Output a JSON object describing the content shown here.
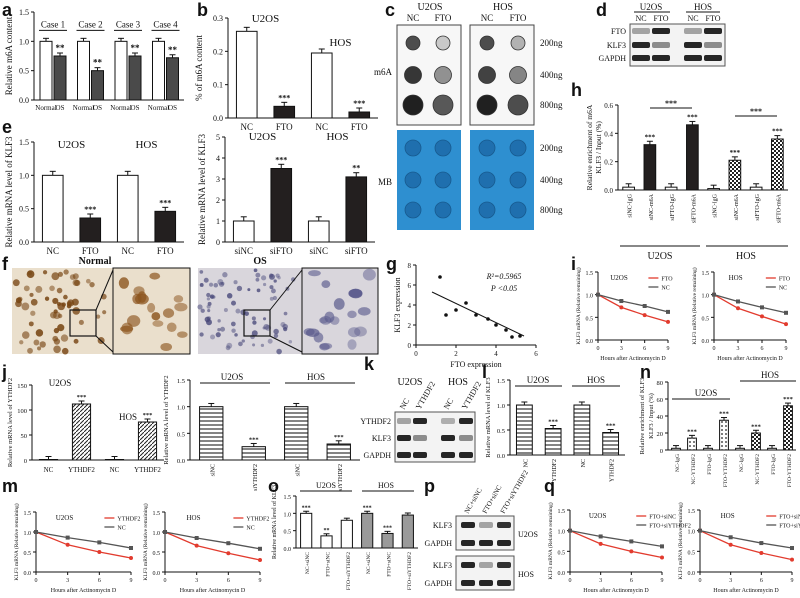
{
  "panels": {
    "a": {
      "letter": "a",
      "chart_data": {
        "type": "bar",
        "ylabel": "Relative m6A content",
        "groups": [
          "Case 1",
          "Case 2",
          "Case 3",
          "Case 4"
        ],
        "tick_labels": [
          "Normal",
          "OS"
        ],
        "values": [
          [
            1.0,
            0.75
          ],
          [
            1.0,
            0.5
          ],
          [
            1.0,
            0.75
          ],
          [
            1.0,
            0.72
          ]
        ],
        "sig": [
          "**",
          "**",
          "**",
          "**"
        ],
        "yticks": [
          "0.0",
          "0.5",
          "1.0",
          "1.5"
        ],
        "ylim": [
          0,
          1.5
        ]
      }
    },
    "b": {
      "letter": "b",
      "chart_data": {
        "type": "bar",
        "ylabel": "% of m6A content",
        "groups": [
          "U2OS",
          "HOS"
        ],
        "categories": [
          "NC",
          "FTO",
          "NC",
          "FTO"
        ],
        "values": [
          0.26,
          0.035,
          0.195,
          0.018
        ],
        "sig": [
          "",
          "***",
          "",
          "***"
        ],
        "yticks": [
          "0.0",
          "0.1",
          "0.2",
          "0.3"
        ],
        "ylim": [
          0,
          0.3
        ]
      }
    },
    "c": {
      "letter": "c",
      "groups": [
        "U2OS",
        "HOS"
      ],
      "cols": [
        "NC",
        "FTO",
        "NC",
        "FTO"
      ],
      "rows": [
        "200ng",
        "400ng",
        "800ng"
      ],
      "m6a_label": "m6A",
      "mb_label": "MB"
    },
    "d": {
      "letter": "d",
      "groups": [
        "U2OS",
        "HOS"
      ],
      "cols": [
        "NC",
        "FTO",
        "NC",
        "FTO"
      ],
      "bands": [
        "FTO",
        "KLF3",
        "GAPDH"
      ]
    },
    "e": {
      "letter": "e",
      "left": {
        "type": "bar",
        "ylabel": "Relative mRNA level of KLF3",
        "groups": [
          "U2OS",
          "HOS"
        ],
        "categories": [
          "NC",
          "FTO",
          "NC",
          "FTO"
        ],
        "values": [
          1.0,
          0.36,
          1.0,
          0.46
        ],
        "sig": [
          "",
          "***",
          "",
          "***"
        ],
        "yticks": [
          "0.0",
          "0.5",
          "1.0",
          "1.5"
        ],
        "ylim": [
          0,
          1.5
        ]
      },
      "right": {
        "type": "bar",
        "ylabel": "Relative mRNA level of KLF3",
        "groups": [
          "U2OS",
          "HOS"
        ],
        "categories": [
          "siNC",
          "siFTO",
          "siNC",
          "siFTO"
        ],
        "values": [
          1.0,
          3.5,
          1.0,
          3.1
        ],
        "sig": [
          "",
          "***",
          "",
          "**"
        ],
        "yticks": [
          "0",
          "1",
          "2",
          "3",
          "4",
          "5"
        ],
        "ylim": [
          0,
          5
        ]
      }
    },
    "f": {
      "letter": "f",
      "normal_label": "Normal",
      "os_label": "OS"
    },
    "g": {
      "letter": "g",
      "chart_data": {
        "type": "scatter",
        "xlabel": "FTO expression",
        "ylabel": "KLF3 expression",
        "r2": "R²=0.5965",
        "p": "P <0.05",
        "x": [
          1.2,
          1.5,
          2.0,
          2.5,
          3.0,
          3.6,
          4.0,
          4.5,
          4.8,
          5.2
        ],
        "y": [
          6.8,
          3.0,
          3.5,
          4.2,
          3.0,
          2.6,
          2.0,
          1.5,
          0.8,
          0.9
        ],
        "xticks": [
          "0",
          "2",
          "4",
          "6"
        ],
        "yticks": [
          "0",
          "2",
          "4",
          "6",
          "8"
        ],
        "xlim": [
          0,
          6
        ],
        "ylim": [
          0,
          8
        ]
      }
    },
    "h": {
      "letter": "h",
      "chart_data": {
        "type": "bar",
        "ylabel": "Relative enrichment of m6A",
        "ylabel2": "KLF3 / Input (%)",
        "groups": [
          "U2OS",
          "HOS"
        ],
        "categories": [
          "siNC-IgG",
          "siNC-m6A",
          "siFTO-IgG",
          "siFTO-m6A",
          "siNC-IgG",
          "siNC-m6A",
          "siFTO-IgG",
          "siFTO-m6A"
        ],
        "values": [
          0.02,
          0.32,
          0.02,
          0.46,
          0.01,
          0.21,
          0.02,
          0.36
        ],
        "sig": [
          "",
          "***",
          "",
          "***",
          "",
          "***",
          "",
          "***"
        ],
        "yticks": [
          "0.0",
          "0.2",
          "0.4",
          "0.6"
        ],
        "ylim": [
          0,
          0.6
        ]
      }
    },
    "i": {
      "letter": "i",
      "charts": [
        {
          "title": "U2OS",
          "series": [
            {
              "name": "FTO",
              "values": [
                1.0,
                0.72,
                0.55,
                0.4
              ]
            },
            {
              "name": "NC",
              "values": [
                1.0,
                0.86,
                0.75,
                0.62
              ]
            }
          ]
        },
        {
          "title": "HOS",
          "series": [
            {
              "name": "FTO",
              "values": [
                1.0,
                0.7,
                0.52,
                0.35
              ]
            },
            {
              "name": "NC",
              "values": [
                1.0,
                0.85,
                0.72,
                0.6
              ]
            }
          ]
        }
      ],
      "x": [
        "0",
        "3",
        "6",
        "9"
      ],
      "ylabel": "KLF3 mRNA (Relative remaining)",
      "xlabel": "Hours after Actinomycin D",
      "yticks": [
        "0.0",
        "0.5",
        "1.0",
        "1.5"
      ]
    },
    "j": {
      "letter": "j",
      "left": {
        "type": "bar",
        "ylabel": "Relative mRNA level of YTHDF2",
        "groups": [
          "U2OS",
          "HOS"
        ],
        "categories": [
          "NC",
          "YTHDF2",
          "NC",
          "YTHDF2"
        ],
        "values": [
          1,
          112,
          1,
          76
        ],
        "sig": [
          "",
          "***",
          "",
          "***"
        ],
        "yticks": [
          "0",
          "50",
          "100",
          "150"
        ],
        "ylim": [
          0,
          150
        ]
      },
      "right": {
        "type": "bar",
        "ylabel": "Relative mRNA level of YTHDF2",
        "groups": [
          "U2OS",
          "HOS"
        ],
        "categories": [
          "siNC",
          "siYTHDF2",
          "siNC",
          "siYTHDF2"
        ],
        "values": [
          1.0,
          0.25,
          1.0,
          0.3
        ],
        "sig": [
          "",
          "***",
          "",
          "***"
        ],
        "yticks": [
          "0.0",
          "0.5",
          "1.0",
          "1.5"
        ],
        "ylim": [
          0,
          1.5
        ]
      }
    },
    "k": {
      "letter": "k",
      "groups": [
        "U2OS",
        "HOS"
      ],
      "cols": [
        "NC",
        "YTHDF2",
        "NC",
        "YTHDF2"
      ],
      "bands": [
        "YTHDF2",
        "KLF3",
        "GAPDH"
      ]
    },
    "l": {
      "letter": "l",
      "chart_data": {
        "type": "bar",
        "ylabel": "Relative mRNA level of KLF3",
        "groups": [
          "U2OS",
          "HOS"
        ],
        "categories": [
          "NC",
          "YTHDF2",
          "NC",
          "YTHDF2"
        ],
        "values": [
          1.0,
          0.53,
          1.0,
          0.45
        ],
        "sig": [
          "",
          "***",
          "",
          "***"
        ],
        "yticks": [
          "0.0",
          "0.5",
          "1.0",
          "1.5"
        ],
        "ylim": [
          0,
          1.5
        ]
      }
    },
    "m": {
      "letter": "m",
      "charts": [
        {
          "title": "U2OS",
          "series": [
            {
              "name": "YTHDF2",
              "values": [
                1.0,
                0.68,
                0.5,
                0.35
              ]
            },
            {
              "name": "NC",
              "values": [
                1.0,
                0.86,
                0.74,
                0.6
              ]
            }
          ]
        },
        {
          "title": "HOS",
          "series": [
            {
              "name": "YTHDF2",
              "values": [
                1.0,
                0.66,
                0.47,
                0.3
              ]
            },
            {
              "name": "NC",
              "values": [
                1.0,
                0.85,
                0.72,
                0.58
              ]
            }
          ]
        }
      ],
      "x": [
        "0",
        "3",
        "6",
        "9"
      ],
      "ylabel": "KLF3 mRNA (Relative remaining)",
      "xlabel": "Hours after Actinomycin D",
      "yticks": [
        "0.0",
        "0.5",
        "1.0",
        "1.5"
      ]
    },
    "n": {
      "letter": "n",
      "chart_data": {
        "type": "bar",
        "ylabel": "Relative enrichment of KLF3",
        "ylabel2": "KLF3 / Input (%)",
        "groups": [
          "U2OS",
          "HOS"
        ],
        "categories": [
          "NC-IgG",
          "NC-YTHDF2",
          "FTO-IgG",
          "FTO-YTHDF2",
          "NC-IgG",
          "NC-YTHDF2",
          "FTO-IgG",
          "FTO-YTHDF2"
        ],
        "values": [
          2,
          14,
          2,
          35,
          2,
          20,
          2,
          52
        ],
        "sig": [
          "",
          "***",
          "",
          "***",
          "",
          "***",
          "",
          "***"
        ],
        "yticks": [
          "0",
          "20",
          "40",
          "60",
          "80"
        ],
        "ylim": [
          0,
          80
        ]
      }
    },
    "o": {
      "letter": "o",
      "chart_data": {
        "type": "bar",
        "ylabel": "Relative mRNA level of KLF3",
        "groups": [
          "U2OS",
          "HOS"
        ],
        "categories": [
          "NC+siNC",
          "FTO+siNC",
          "FTO+siYTHDF2",
          "NC+siNC",
          "FTO+siNC",
          "FTO+siYTHDF2"
        ],
        "values": [
          1.0,
          0.35,
          0.8,
          1.0,
          0.42,
          0.95
        ],
        "sig": [
          "***",
          "**",
          "",
          "***",
          "***",
          ""
        ],
        "yticks": [
          "0.0",
          "0.5",
          "1.0",
          "1.5"
        ],
        "ylim": [
          0,
          1.5
        ]
      }
    },
    "p": {
      "letter": "p",
      "cols": [
        "NC+siNC",
        "FTO+siNC",
        "FTO+siYTHDF2"
      ],
      "bands": [
        "KLF3",
        "GAPDH",
        "KLF3",
        "GAPDH"
      ],
      "cell_lines": [
        "U2OS",
        "HOS"
      ]
    },
    "q": {
      "letter": "q",
      "charts": [
        {
          "title": "U2OS",
          "series": [
            {
              "name": "FTO+siNC",
              "values": [
                1.0,
                0.68,
                0.5,
                0.35
              ]
            },
            {
              "name": "FTO+siYTHDF2",
              "values": [
                1.0,
                0.86,
                0.74,
                0.62
              ]
            }
          ]
        },
        {
          "title": "HOS",
          "series": [
            {
              "name": "FTO+siNC",
              "values": [
                1.0,
                0.66,
                0.46,
                0.3
              ]
            },
            {
              "name": "FTO+siYTHDF2",
              "values": [
                1.0,
                0.84,
                0.7,
                0.58
              ]
            }
          ]
        }
      ],
      "x": [
        "0",
        "3",
        "6",
        "9"
      ],
      "ylabel": "KLF3 mRNA (Relative remaining)",
      "xlabel": "Hours after Actinomycin D",
      "yticks": [
        "0.0",
        "0.5",
        "1.0",
        "1.5"
      ]
    }
  },
  "colors": {
    "dark": "#1e1b1b",
    "light": "#ffffff",
    "red": "#e23b2e",
    "blue_membrane": "#2e8fd0",
    "gray": "#555555"
  }
}
